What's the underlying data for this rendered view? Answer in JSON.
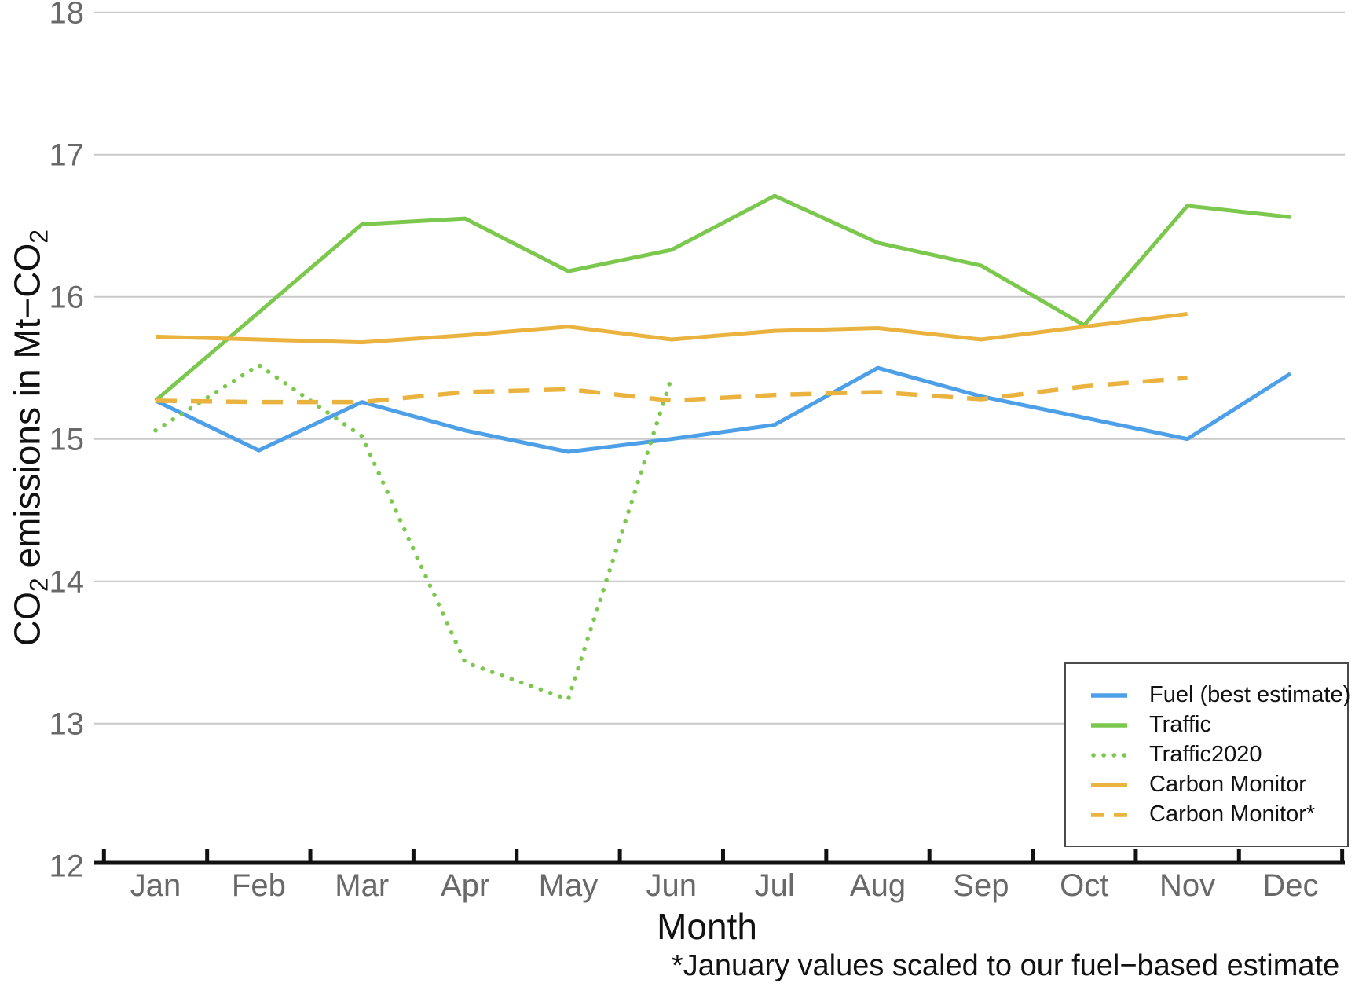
{
  "chart_data": {
    "type": "line",
    "title": "",
    "xlabel": "Month",
    "ylabel": "CO2 emissions in Mt−CO2",
    "ylabel_parts": {
      "p1": "CO",
      "sub1": "2",
      "p2": " emissions in Mt−CO",
      "sub2": "2"
    },
    "footnote": "*January values scaled to our fuel−based estimate",
    "categories": [
      "Jan",
      "Feb",
      "Mar",
      "Apr",
      "May",
      "Jun",
      "Jul",
      "Aug",
      "Sep",
      "Oct",
      "Nov",
      "Dec"
    ],
    "ylim": [
      12,
      18
    ],
    "yticks": [
      12,
      13,
      14,
      15,
      16,
      17,
      18
    ],
    "grid": "horizontal-only",
    "legend_position": "bottom-right",
    "legend_order": [
      "Fuel (best estimate)",
      "Traffic",
      "Traffic2020",
      "Carbon Monitor",
      "Carbon Monitor*"
    ],
    "series": [
      {
        "name": "Fuel (best estimate)",
        "style": "solid",
        "color": "#4D9FE8",
        "values": [
          15.27,
          14.92,
          15.26,
          15.06,
          14.91,
          15.0,
          15.1,
          15.5,
          15.3,
          15.15,
          15.0,
          15.46
        ]
      },
      {
        "name": "Traffic",
        "style": "solid",
        "color": "#7CC84E",
        "values": [
          15.27,
          15.89,
          16.51,
          16.55,
          16.18,
          16.33,
          16.71,
          16.38,
          16.22,
          15.8,
          16.64,
          16.56
        ]
      },
      {
        "name": "Traffic2020",
        "style": "dotted",
        "color": "#7CC84E",
        "values": [
          15.06,
          15.52,
          15.02,
          13.43,
          13.17,
          15.43,
          null,
          null,
          null,
          null,
          null,
          null
        ]
      },
      {
        "name": "Carbon Monitor",
        "style": "solid",
        "color": "#EAB33F",
        "values": [
          15.72,
          15.7,
          15.68,
          15.73,
          15.79,
          15.7,
          15.76,
          15.78,
          15.7,
          15.79,
          15.88,
          null
        ]
      },
      {
        "name": "Carbon Monitor*",
        "style": "dashed",
        "color": "#EAB33F",
        "values": [
          15.27,
          15.26,
          15.26,
          15.33,
          15.35,
          15.27,
          15.31,
          15.33,
          15.28,
          15.37,
          15.43,
          null
        ]
      }
    ],
    "colors": {
      "blue": "#4D9FE8",
      "green": "#7CC84E",
      "orange": "#EAB33F",
      "gridline": "#C9C9C9",
      "tick_label": "#696969",
      "axis_line": "#111111"
    }
  }
}
